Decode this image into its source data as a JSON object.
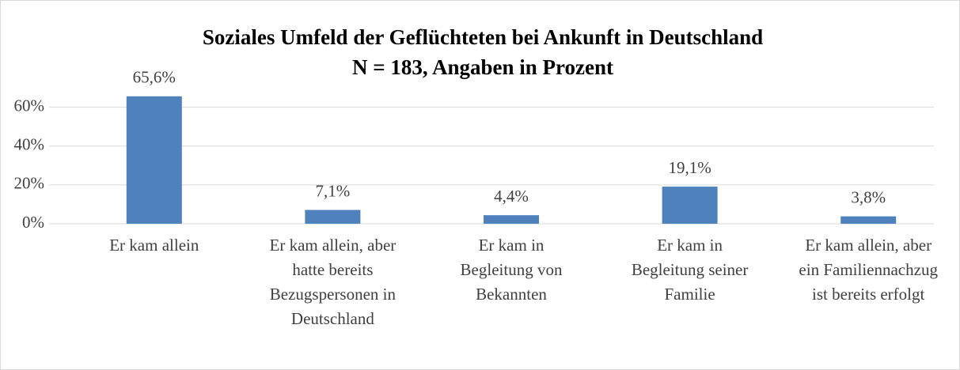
{
  "chart_data": {
    "type": "bar",
    "title": [
      "Soziales Umfeld der Geflüchteten bei Ankunft in Deutschland",
      "N = 183, Angaben in Prozent"
    ],
    "categories": [
      "Er kam allein",
      "Er kam allein, aber\nhatte bereits\nBezugspersonen in\nDeutschland",
      "Er kam in\nBegleitung von\nBekannten",
      "Er kam in\nBegleitung seiner\nFamilie",
      "Er kam allein, aber\nein Familiennachzug\nist bereits erfolgt"
    ],
    "values": [
      65.6,
      7.1,
      4.4,
      19.1,
      3.8
    ],
    "value_labels": [
      "65,6%",
      "7,1%",
      "4,4%",
      "19,1%",
      "3,8%"
    ],
    "color": "#4f81bd",
    "ylim": [
      0,
      70
    ],
    "yticks": [
      {
        "value": 0,
        "label": "0%"
      },
      {
        "value": 20,
        "label": "20%"
      },
      {
        "value": 40,
        "label": "40%"
      },
      {
        "value": 60,
        "label": "60%"
      }
    ],
    "grid": true
  }
}
